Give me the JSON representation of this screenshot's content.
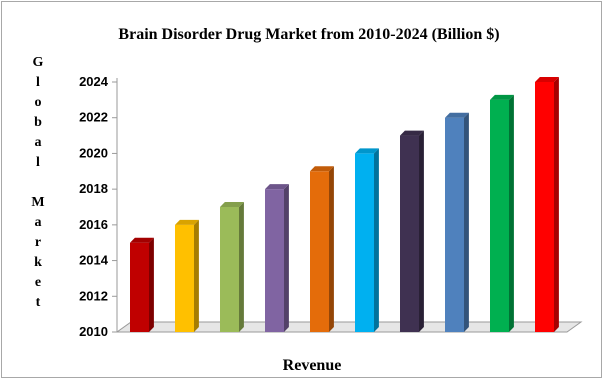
{
  "chart_data": {
    "type": "bar",
    "title": "Brain Disorder Drug Market from 2010-2024 (Billion $)",
    "ylabel": "Global Market",
    "xlabel": "Revenue",
    "ylim": [
      2010,
      2024
    ],
    "yticks": [
      "2010",
      "2012",
      "2014",
      "2016",
      "2018",
      "2020",
      "2022",
      "2024"
    ],
    "values": [
      2015,
      2016,
      2017,
      2018,
      2019,
      2020,
      2021,
      2022,
      2023,
      2024
    ],
    "colors": [
      "#C00000",
      "#FFC000",
      "#9BBB59",
      "#8064A2",
      "#E46C0A",
      "#00B0F0",
      "#3F3151",
      "#4F81BD",
      "#00B050",
      "#FF0000"
    ],
    "grid": false,
    "legend": "none",
    "style": "3d-column"
  }
}
